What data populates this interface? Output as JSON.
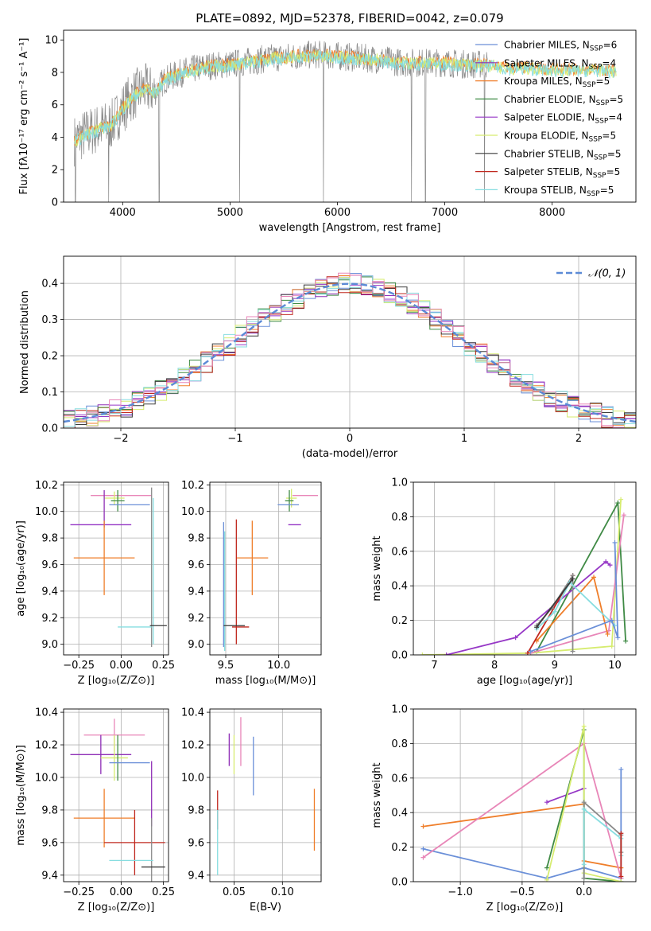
{
  "figure": {
    "title": "PLATE=0892, MJD=52378, FIBERID=0042, z=0.079"
  },
  "model_colors": {
    "Chabrier MILES": "#6a8fd8",
    "Salpeter MILES": "#8f2fb6",
    "Kroupa MILES": "#ef7e2a",
    "Chabrier ELODIE": "#3f8a45",
    "Salpeter ELODIE": "#9637c6",
    "Kroupa ELODIE": "#d6ec6f",
    "Chabrier STELIB": "#3a3a3a",
    "Salpeter STELIB": "#c0281f",
    "Kroupa STELIB": "#86dde0",
    "MILES pink": "#e886b8",
    "gray": "#8a8a8a"
  },
  "chart_data": [
    {
      "id": "spectrum",
      "type": "line",
      "xlabel": "wavelength [Angstrom, rest frame]",
      "ylabel": "Flux [fλ10⁻¹⁷ erg cm⁻² s⁻¹ A⁻¹]",
      "xlim": [
        3450,
        8780
      ],
      "ylim": [
        0,
        10.6
      ],
      "xticks": [
        4000,
        5000,
        6000,
        7000,
        8000
      ],
      "yticks": [
        0,
        2,
        4,
        6,
        8,
        10
      ],
      "grid": false,
      "legend_position": "upper right",
      "legend": [
        {
          "label": "Chabrier MILES, N",
          "sub": "SSP",
          "tail": "=6",
          "color": "#6a8fd8"
        },
        {
          "label": "Salpeter MILES, N",
          "sub": "SSP",
          "tail": "=4",
          "color": "#8f2fb6"
        },
        {
          "label": "Kroupa MILES, N",
          "sub": "SSP",
          "tail": "=5",
          "color": "#ef7e2a"
        },
        {
          "label": "Chabrier ELODIE, N",
          "sub": "SSP",
          "tail": "=5",
          "color": "#3f8a45"
        },
        {
          "label": "Salpeter ELODIE, N",
          "sub": "SSP",
          "tail": "=4",
          "color": "#9637c6"
        },
        {
          "label": "Kroupa ELODIE, N",
          "sub": "SSP",
          "tail": "=5",
          "color": "#d6ec6f"
        },
        {
          "label": "Chabrier STELIB, N",
          "sub": "SSP",
          "tail": "=5",
          "color": "#3a3a3a"
        },
        {
          "label": "Salpeter STELIB, N",
          "sub": "SSP",
          "tail": "=5",
          "color": "#c0281f"
        },
        {
          "label": "Kroupa STELIB, N",
          "sub": "SSP",
          "tail": "=5",
          "color": "#86dde0"
        }
      ],
      "continuum": {
        "x": [
          3550,
          3650,
          3800,
          3900,
          4000,
          4100,
          4200,
          4300,
          4400,
          4600,
          4800,
          5000,
          5200,
          5400,
          5600,
          5800,
          6000,
          6200,
          6400,
          6600,
          6800,
          7000,
          7200,
          7400,
          7600,
          7800,
          8000,
          8200,
          8400,
          8600
        ],
        "y": [
          3.8,
          4.2,
          4.6,
          4.8,
          5.8,
          6.6,
          7.0,
          6.8,
          7.6,
          8.1,
          8.4,
          8.5,
          8.7,
          8.9,
          9.0,
          9.1,
          9.0,
          8.9,
          8.8,
          8.6,
          8.6,
          8.6,
          8.5,
          8.5,
          8.3,
          8.3,
          8.2,
          8.2,
          8.2,
          8.1
        ]
      },
      "data_range": [
        3550,
        7400
      ],
      "model_range": [
        3550,
        8600
      ],
      "dips": [
        {
          "x": 3560,
          "y": 0
        },
        {
          "x": 3870,
          "y": 0
        },
        {
          "x": 4340,
          "y": 0
        },
        {
          "x": 5090,
          "y": 0
        },
        {
          "x": 5870,
          "y": 0
        },
        {
          "x": 6690,
          "y": 0
        },
        {
          "x": 6820,
          "y": 0
        },
        {
          "x": 7370,
          "y": 0
        }
      ]
    },
    {
      "id": "residuals",
      "type": "line",
      "xlabel": "(data-model)/error",
      "ylabel": "Normed distribution",
      "xlim": [
        -2.5,
        2.5
      ],
      "ylim": [
        0,
        0.475
      ],
      "xticks": [
        -2,
        -1,
        0,
        1,
        2
      ],
      "yticks": [
        0.0,
        0.1,
        0.2,
        0.3,
        0.4
      ],
      "grid": true,
      "legend_position": "upper right",
      "gaussian_label": "𝒩(0, 1)",
      "gaussian_color": "#5b8ad6",
      "bin_width": 0.1
    },
    {
      "id": "age_vs_Z",
      "type": "scatter",
      "xlabel": "Z [log₁₀(Z/Z⊙)]",
      "ylabel": "age  [log₁₀(age/yr)]",
      "xlim": [
        -0.34,
        0.28
      ],
      "ylim": [
        8.92,
        10.22
      ],
      "xticks": [
        -0.25,
        0.0,
        0.25
      ],
      "yticks": [
        9.0,
        9.2,
        9.4,
        9.6,
        9.8,
        10.0,
        10.2
      ],
      "grid": true,
      "points": [
        {
          "x": 0.0,
          "y": 10.12,
          "xerr": 0.18,
          "yerr": 0.0,
          "c": "#e886b8"
        },
        {
          "x": -0.04,
          "y": 10.1,
          "xerr": 0.06,
          "yerr": 0.05,
          "c": "#d6ec6f"
        },
        {
          "x": -0.02,
          "y": 10.08,
          "xerr": 0.04,
          "yerr": 0.08,
          "c": "#3f8a45"
        },
        {
          "x": 0.05,
          "y": 10.05,
          "xerr": 0.12,
          "yerr": 0.0,
          "c": "#6a8fd8"
        },
        {
          "x": -0.1,
          "y": 10.02,
          "xerr": 0.0,
          "yerr": 0.14,
          "c": "#8f2fb6"
        },
        {
          "x": -0.12,
          "y": 9.9,
          "xerr": 0.18,
          "yerr": 0.0,
          "c": "#9637c6"
        },
        {
          "x": -0.1,
          "y": 9.65,
          "xerr": 0.18,
          "yerr": 0.28,
          "c": "#ef7e2a"
        },
        {
          "x": 0.18,
          "y": 9.58,
          "xerr": 0.0,
          "yerr": 0.6,
          "c": "#8a8a8a"
        },
        {
          "x": 0.19,
          "y": 9.55,
          "xerr": 0.0,
          "yerr": 0.55,
          "c": "#86dde0"
        },
        {
          "x": 0.22,
          "y": 9.14,
          "xerr": 0.05,
          "yerr": 0.0,
          "c": "#3a3a3a"
        },
        {
          "x": 0.08,
          "y": 9.13,
          "xerr": 0.1,
          "yerr": 0.0,
          "c": "#86dde0"
        }
      ]
    },
    {
      "id": "age_vs_mass",
      "type": "scatter",
      "xlabel": "mass [log₁₀(M/M⊙)]",
      "ylabel": "",
      "xlim": [
        9.35,
        10.4
      ],
      "ylim": [
        8.92,
        10.22
      ],
      "xticks": [
        9.5,
        10.0
      ],
      "yticks": [
        9.0,
        9.2,
        9.4,
        9.6,
        9.8,
        10.0,
        10.2
      ],
      "grid": true,
      "points": [
        {
          "x": 10.25,
          "y": 10.12,
          "xerr": 0.12,
          "yerr": 0.0,
          "c": "#e886b8"
        },
        {
          "x": 10.12,
          "y": 10.1,
          "xerr": 0.05,
          "yerr": 0.07,
          "c": "#d6ec6f"
        },
        {
          "x": 10.1,
          "y": 10.08,
          "xerr": 0.04,
          "yerr": 0.08,
          "c": "#3f8a45"
        },
        {
          "x": 10.09,
          "y": 10.05,
          "xerr": 0.1,
          "yerr": 0.0,
          "c": "#6a8fd8"
        },
        {
          "x": 10.15,
          "y": 9.9,
          "xerr": 0.06,
          "yerr": 0.0,
          "c": "#9637c6"
        },
        {
          "x": 9.75,
          "y": 9.65,
          "xerr": 0.15,
          "yerr": 0.28,
          "c": "#ef7e2a"
        },
        {
          "x": 9.6,
          "y": 9.47,
          "xerr": 0.0,
          "yerr": 0.47,
          "c": "#c0281f"
        },
        {
          "x": 9.48,
          "y": 9.45,
          "xerr": 0.0,
          "yerr": 0.47,
          "c": "#6a8fd8"
        },
        {
          "x": 9.49,
          "y": 9.4,
          "xerr": 0.0,
          "yerr": 0.45,
          "c": "#86dde0"
        },
        {
          "x": 9.64,
          "y": 9.13,
          "xerr": 0.08,
          "yerr": 0.0,
          "c": "#c0281f"
        },
        {
          "x": 9.58,
          "y": 9.14,
          "xerr": 0.1,
          "yerr": 0.0,
          "c": "#3a3a3a"
        }
      ]
    },
    {
      "id": "weight_vs_age",
      "type": "line",
      "xlabel": "age  [log₁₀(age/yr)]",
      "ylabel": "mass weight",
      "xlim": [
        6.65,
        10.35
      ],
      "ylim": [
        0,
        1.0
      ],
      "xticks": [
        7,
        8,
        9,
        10
      ],
      "yticks": [
        0.0,
        0.2,
        0.4,
        0.6,
        0.8,
        1.0
      ],
      "grid": true,
      "series": [
        {
          "c": "#3f8a45",
          "x": [
            8.7,
            10.05,
            10.18
          ],
          "y": [
            0.02,
            0.88,
            0.08
          ]
        },
        {
          "c": "#d6ec6f",
          "x": [
            6.8,
            8.6,
            9.95,
            10.1
          ],
          "y": [
            0.0,
            0.01,
            0.05,
            0.9
          ]
        },
        {
          "c": "#e886b8",
          "x": [
            8.6,
            9.9,
            10.15
          ],
          "y": [
            0.01,
            0.14,
            0.81
          ]
        },
        {
          "c": "#9637c6",
          "x": [
            7.2,
            8.35,
            9.85,
            9.92
          ],
          "y": [
            0.0,
            0.1,
            0.54,
            0.52
          ]
        },
        {
          "c": "#ef7e2a",
          "x": [
            8.7,
            9.65,
            9.88
          ],
          "y": [
            0.08,
            0.45,
            0.12
          ]
        },
        {
          "c": "#c0281f",
          "x": [
            8.55,
            9.3
          ],
          "y": [
            0.01,
            0.46
          ]
        },
        {
          "c": "#8a8a8a",
          "x": [
            8.7,
            8.95,
            9.3,
            9.3
          ],
          "y": [
            0.17,
            0.27,
            0.46,
            0.02
          ]
        },
        {
          "c": "#86dde0",
          "x": [
            8.7,
            9.0,
            9.25,
            10.0
          ],
          "y": [
            0.15,
            0.25,
            0.42,
            0.17
          ]
        },
        {
          "c": "#6a8fd8",
          "x": [
            8.6,
            9.95,
            10.05,
            10.0
          ],
          "y": [
            0.02,
            0.2,
            0.1,
            0.65
          ]
        },
        {
          "c": "#3a3a3a",
          "x": [
            8.7,
            9.3
          ],
          "y": [
            0.16,
            0.44
          ]
        }
      ]
    },
    {
      "id": "mass_vs_Z",
      "type": "scatter",
      "xlabel": "Z [log₁₀(Z/Z⊙)]",
      "ylabel": "mass [log₁₀(M/M⊙)]",
      "xlim": [
        -0.34,
        0.28
      ],
      "ylim": [
        9.36,
        10.42
      ],
      "xticks": [
        -0.25,
        0.0,
        0.25
      ],
      "yticks": [
        9.4,
        9.6,
        9.8,
        10.0,
        10.2,
        10.4
      ],
      "grid": true,
      "points": [
        {
          "x": -0.04,
          "y": 10.26,
          "xerr": 0.18,
          "yerr": 0.1,
          "c": "#e886b8"
        },
        {
          "x": -0.12,
          "y": 10.14,
          "xerr": 0.18,
          "yerr": 0.12,
          "c": "#8f2fb6"
        },
        {
          "x": -0.04,
          "y": 10.12,
          "xerr": 0.08,
          "yerr": 0.14,
          "c": "#d6ec6f"
        },
        {
          "x": -0.02,
          "y": 10.12,
          "xerr": 0.0,
          "yerr": 0.14,
          "c": "#3f8a45"
        },
        {
          "x": 0.05,
          "y": 10.09,
          "xerr": 0.12,
          "yerr": 0.0,
          "c": "#6a8fd8"
        },
        {
          "x": -0.1,
          "y": 9.75,
          "xerr": 0.18,
          "yerr": 0.18,
          "c": "#ef7e2a"
        },
        {
          "x": 0.18,
          "y": 9.9,
          "xerr": 0.0,
          "yerr": 0.2,
          "c": "#8f2fb6"
        },
        {
          "x": 0.08,
          "y": 9.6,
          "xerr": 0.18,
          "yerr": 0.2,
          "c": "#c0281f"
        },
        {
          "x": 0.18,
          "y": 9.55,
          "xerr": 0.0,
          "yerr": 0.2,
          "c": "#8a8a8a"
        },
        {
          "x": 0.06,
          "y": 9.49,
          "xerr": 0.13,
          "yerr": 0.0,
          "c": "#86dde0"
        },
        {
          "x": 0.19,
          "y": 9.45,
          "xerr": 0.07,
          "yerr": 0.0,
          "c": "#3a3a3a"
        }
      ]
    },
    {
      "id": "mass_vs_ebv",
      "type": "scatter",
      "xlabel": "E(B-V)",
      "ylabel": "",
      "xlim": [
        0.025,
        0.14
      ],
      "ylim": [
        9.36,
        10.42
      ],
      "xticks": [
        0.05,
        0.1
      ],
      "yticks": [
        9.4,
        9.6,
        9.8,
        10.0,
        10.2,
        10.4
      ],
      "grid": true,
      "points": [
        {
          "x": 0.045,
          "y": 10.17,
          "xerr": 0.0,
          "yerr": 0.1,
          "c": "#8f2fb6"
        },
        {
          "x": 0.05,
          "y": 10.14,
          "xerr": 0.0,
          "yerr": 0.12,
          "c": "#d6ec6f"
        },
        {
          "x": 0.057,
          "y": 10.22,
          "xerr": 0.0,
          "yerr": 0.15,
          "c": "#e886b8"
        },
        {
          "x": 0.07,
          "y": 10.07,
          "xerr": 0.0,
          "yerr": 0.18,
          "c": "#6a8fd8"
        },
        {
          "x": 0.033,
          "y": 9.8,
          "xerr": 0.0,
          "yerr": 0.12,
          "c": "#c0281f"
        },
        {
          "x": 0.033,
          "y": 9.6,
          "xerr": 0.0,
          "yerr": 0.2,
          "c": "#86dde0"
        },
        {
          "x": 0.133,
          "y": 9.74,
          "xerr": 0.0,
          "yerr": 0.19,
          "c": "#ef7e2a"
        }
      ]
    },
    {
      "id": "weight_vs_Z",
      "type": "line",
      "xlabel": "Z [log₁₀(Z/Z⊙)]",
      "ylabel": "mass weight",
      "xlim": [
        -1.38,
        0.42
      ],
      "ylim": [
        0,
        1.0
      ],
      "xticks": [
        -1.0,
        -0.5,
        0.0
      ],
      "yticks": [
        0.0,
        0.2,
        0.4,
        0.6,
        0.8,
        1.0
      ],
      "grid": true,
      "series": [
        {
          "c": "#6a8fd8",
          "x": [
            -1.3,
            -0.3,
            0.0,
            0.3,
            0.3,
            0.3
          ],
          "y": [
            0.19,
            0.02,
            0.08,
            0.02,
            0.65,
            0.02
          ]
        },
        {
          "c": "#ef7e2a",
          "x": [
            -1.3,
            0.0,
            0.0,
            0.3
          ],
          "y": [
            0.32,
            0.45,
            0.12,
            0.08
          ]
        },
        {
          "c": "#e886b8",
          "x": [
            -1.3,
            0.0,
            0.3
          ],
          "y": [
            0.14,
            0.8,
            0.02
          ]
        },
        {
          "c": "#9637c6",
          "x": [
            -0.3,
            0.0
          ],
          "y": [
            0.46,
            0.54
          ]
        },
        {
          "c": "#3f8a45",
          "x": [
            -0.3,
            0.0,
            0.0,
            0.3
          ],
          "y": [
            0.08,
            0.88,
            0.02,
            0.0
          ]
        },
        {
          "c": "#d6ec6f",
          "x": [
            -0.3,
            0.0,
            0.0,
            0.3
          ],
          "y": [
            0.01,
            0.9,
            0.05,
            0.0
          ]
        },
        {
          "c": "#8a8a8a",
          "x": [
            0.0,
            0.0,
            0.3,
            0.3
          ],
          "y": [
            0.02,
            0.46,
            0.27,
            0.17
          ]
        },
        {
          "c": "#86dde0",
          "x": [
            0.0,
            0.0,
            0.3,
            0.3
          ],
          "y": [
            0.1,
            0.42,
            0.25,
            0.15
          ]
        },
        {
          "c": "#c0281f",
          "x": [
            0.3,
            0.3
          ],
          "y": [
            0.28,
            0.03
          ]
        }
      ]
    }
  ]
}
